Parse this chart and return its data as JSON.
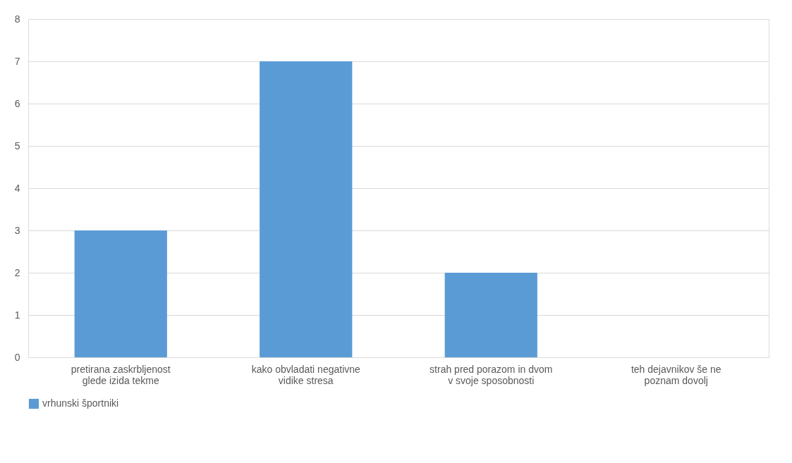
{
  "chart_data": {
    "type": "bar",
    "categories": [
      "pretirana zaskrbljenost glede izida tekme",
      "kako obvladati negativne vidike stresa",
      "strah pred porazom in dvom v svoje sposobnosti",
      "teh dejavnikov še ne poznam dovolj"
    ],
    "series": [
      {
        "name": "vrhunski športniki",
        "color": "#5b9bd5",
        "values": [
          3,
          7,
          2,
          0
        ]
      }
    ],
    "ylim": [
      0,
      8
    ],
    "yticks": [
      0,
      1,
      2,
      3,
      4,
      5,
      6,
      7,
      8
    ],
    "grid": "y",
    "legend": "bottom"
  }
}
